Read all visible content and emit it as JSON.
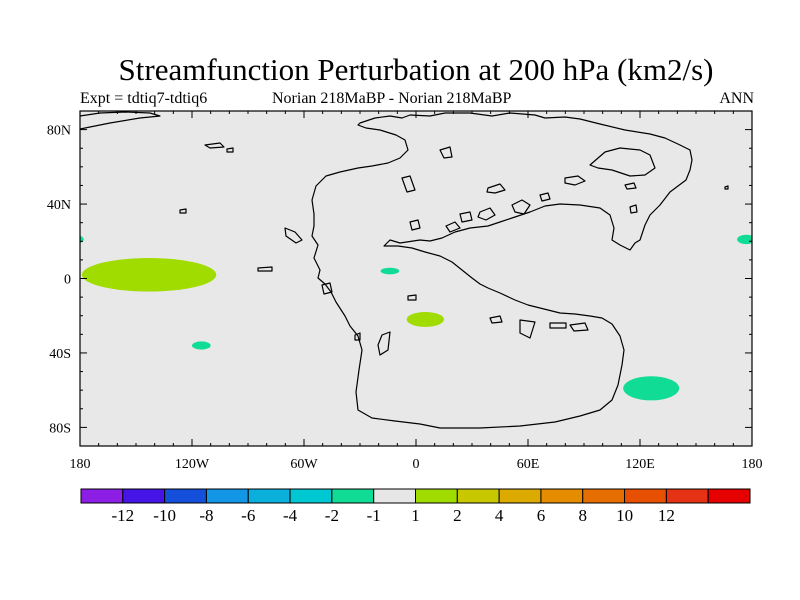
{
  "title": "Streamfunction Perturbation at 200 hPa (km2/s)",
  "subtitle_left": "Expt = tdtiq7-tdtiq6",
  "subtitle_center": "Norian   218MaBP - Norian   218MaBP",
  "subtitle_right": "ANN",
  "map": {
    "projection": "cylindrical-equidistant",
    "background_color": "#e8e8e8",
    "coastline_color": "#000000",
    "lon_range": [
      -180,
      180
    ],
    "lat_range": [
      -90,
      90
    ],
    "lon_ticks": [
      {
        "value": -180,
        "label": "180"
      },
      {
        "value": -120,
        "label": "120W"
      },
      {
        "value": -60,
        "label": "60W"
      },
      {
        "value": 0,
        "label": "0"
      },
      {
        "value": 60,
        "label": "60E"
      },
      {
        "value": 120,
        "label": "120E"
      },
      {
        "value": 180,
        "label": "180"
      }
    ],
    "lat_ticks": [
      {
        "value": 80,
        "label": "80N"
      },
      {
        "value": 40,
        "label": "40N"
      },
      {
        "value": 0,
        "label": "0"
      },
      {
        "value": -40,
        "label": "40S"
      },
      {
        "value": -80,
        "label": "80S"
      }
    ],
    "anomalies": [
      {
        "lon": -143,
        "lat": 2,
        "rlon": 36,
        "rlat": 9,
        "color": "#a0dc00"
      },
      {
        "lon": 5,
        "lat": -22,
        "rlon": 10,
        "rlat": 4,
        "color": "#a0dc00"
      },
      {
        "lon": 126,
        "lat": -59,
        "rlon": 15,
        "rlat": 6.5,
        "color": "#10dc96"
      },
      {
        "lon": -115,
        "lat": -36,
        "rlon": 5,
        "rlat": 2.2,
        "color": "#10dc96"
      },
      {
        "lon": -14,
        "lat": 4,
        "rlon": 5,
        "rlat": 1.8,
        "color": "#10dc96"
      },
      {
        "lon": -183,
        "lat": 21,
        "rlon": 5,
        "rlat": 2.5,
        "color": "#10dc96"
      },
      {
        "lon": 177,
        "lat": 21,
        "rlon": 5,
        "rlat": 2.5,
        "color": "#10dc96"
      }
    ]
  },
  "colorbar": {
    "colors": [
      "#8c1ee6",
      "#4614e6",
      "#1450dc",
      "#1496e6",
      "#0aafdc",
      "#00c8d2",
      "#10dc96",
      "#e6e6e6",
      "#a0dc00",
      "#c8c800",
      "#dcaa00",
      "#e68c00",
      "#e66e00",
      "#e65000",
      "#e63214",
      "#e60000"
    ],
    "labels": [
      "-12",
      "-10",
      "-8",
      "-6",
      "-4",
      "-2",
      "-1",
      "1",
      "2",
      "4",
      "6",
      "8",
      "10",
      "12"
    ]
  }
}
